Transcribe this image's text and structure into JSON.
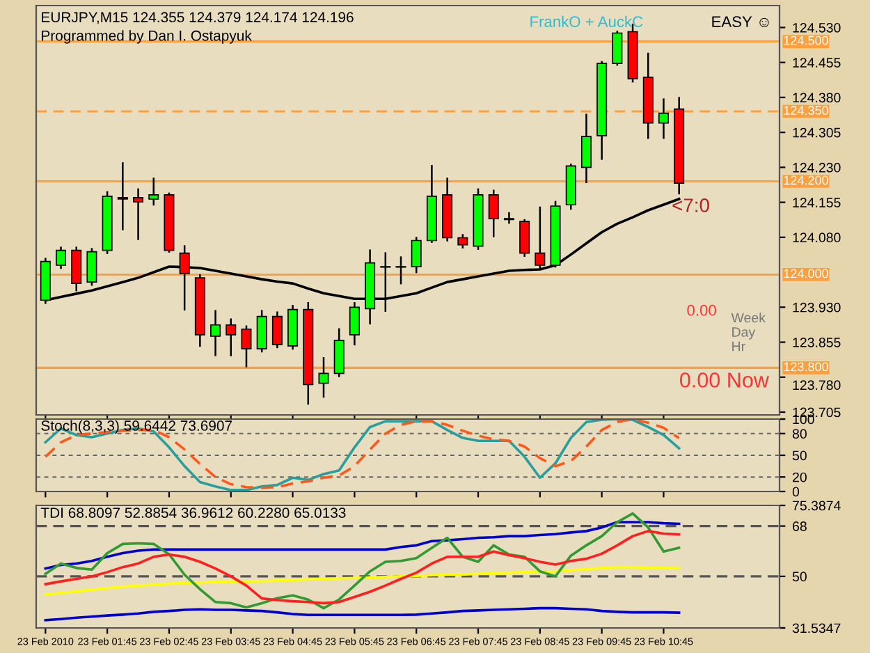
{
  "chart_data": [
    {
      "type": "candlestick",
      "title": "EURJPY,M15 124.355 124.379 124.174 124.196",
      "subtitle": "Programmed by Dan I. Ostapyuk",
      "categories": [
        null,
        null,
        null,
        null,
        null,
        null,
        null,
        null,
        null,
        null,
        null,
        null,
        null,
        null,
        null,
        null,
        null,
        null,
        null,
        null,
        null,
        null,
        null,
        null,
        null,
        null,
        null,
        null,
        null,
        null,
        null,
        null,
        null,
        null,
        null,
        null,
        null,
        null,
        null,
        null,
        null,
        null
      ],
      "ohlc": [
        [
          123.945,
          124.034,
          123.939,
          124.028
        ],
        [
          124.02,
          124.058,
          124.014,
          124.052
        ],
        [
          124.052,
          124.058,
          123.966,
          123.981
        ],
        [
          123.984,
          124.055,
          123.978,
          124.049
        ],
        [
          124.052,
          124.177,
          124.046,
          124.168
        ],
        [
          124.165,
          124.239,
          124.097,
          124.162
        ],
        [
          124.165,
          124.183,
          124.076,
          124.156
        ],
        [
          124.162,
          124.206,
          124.15,
          124.171
        ],
        [
          124.171,
          124.174,
          124.049,
          124.052
        ],
        [
          124.046,
          124.061,
          123.925,
          124.002
        ],
        [
          123.993,
          123.999,
          123.847,
          123.871
        ],
        [
          123.868,
          123.922,
          123.827,
          123.892
        ],
        [
          123.892,
          123.904,
          123.827,
          123.871
        ],
        [
          123.883,
          123.889,
          123.803,
          123.841
        ],
        [
          123.841,
          123.922,
          123.835,
          123.91
        ],
        [
          123.91,
          123.919,
          123.844,
          123.85
        ],
        [
          123.847,
          123.933,
          123.841,
          123.925
        ],
        [
          123.925,
          123.939,
          123.723,
          123.764
        ],
        [
          123.767,
          123.821,
          123.738,
          123.788
        ],
        [
          123.788,
          123.883,
          123.782,
          123.859
        ],
        [
          123.871,
          123.939,
          123.85,
          123.93
        ],
        [
          123.927,
          124.052,
          123.895,
          124.025
        ],
        [
          124.017,
          124.046,
          123.922,
          124.016
        ],
        [
          124.017,
          124.037,
          123.981,
          124.016
        ],
        [
          124.017,
          124.079,
          124.005,
          124.073
        ],
        [
          124.073,
          124.233,
          124.07,
          124.168
        ],
        [
          124.171,
          124.206,
          124.073,
          124.079
        ],
        [
          124.079,
          124.085,
          124.058,
          124.064
        ],
        [
          124.061,
          124.183,
          124.055,
          124.171
        ],
        [
          124.171,
          124.18,
          124.082,
          124.12
        ],
        [
          124.12,
          124.132,
          124.111,
          124.118
        ],
        [
          124.114,
          124.117,
          124.04,
          124.046
        ],
        [
          124.046,
          124.144,
          124.014,
          124.02
        ],
        [
          124.02,
          124.156,
          124.017,
          124.147
        ],
        [
          124.15,
          124.236,
          124.141,
          124.233
        ],
        [
          124.23,
          124.343,
          124.198,
          124.296
        ],
        [
          124.298,
          124.456,
          124.248,
          124.453
        ],
        [
          124.453,
          124.521,
          124.45,
          124.518
        ],
        [
          124.521,
          124.536,
          124.414,
          124.42
        ],
        [
          124.423,
          124.474,
          124.293,
          124.325
        ],
        [
          124.325,
          124.376,
          124.293,
          124.346
        ],
        [
          124.355,
          124.379,
          124.174,
          124.196
        ]
      ],
      "colors": [
        "#00ff00",
        "#00ff00",
        "#ff0000",
        "#00ff00",
        "#00ff00",
        "#ff0000",
        "#ff0000",
        "#00ff00",
        "#ff0000",
        "#ff0000",
        "#ff0000",
        "#00ff00",
        "#ff0000",
        "#ff0000",
        "#00ff00",
        "#ff0000",
        "#00ff00",
        "#ff0000",
        "#00ff00",
        "#00ff00",
        "#00ff00",
        "#00ff00",
        "#ff0000",
        "#ff0000",
        "#00ff00",
        "#00ff00",
        "#ff0000",
        "#ff0000",
        "#00ff00",
        "#ff0000",
        "#ff0000",
        "#ff0000",
        "#ff0000",
        "#00ff00",
        "#00ff00",
        "#00ff00",
        "#00ff00",
        "#00ff00",
        "#ff0000",
        "#ff0000",
        "#00ff00",
        "#ff0000"
      ],
      "series": [
        {
          "type": "line",
          "color": "#000000",
          "values": [
            123.945,
            123.952,
            123.959,
            123.966,
            123.975,
            123.984,
            123.993,
            124.005,
            124.017,
            124.016,
            124.014,
            124.008,
            124.002,
            123.996,
            123.99,
            123.985,
            123.981,
            123.97,
            123.96,
            123.954,
            123.948,
            123.948,
            123.948,
            123.954,
            123.96,
            123.972,
            123.984,
            123.99,
            123.996,
            124.002,
            124.008,
            124.01,
            124.011,
            124.02,
            124.043,
            124.067,
            124.091,
            124.109,
            124.123,
            124.138,
            124.15,
            124.162
          ]
        }
      ],
      "ylim": [
        123.699,
        124.577
      ],
      "yticks": [
        123.705,
        {
          "value": 123.78,
          "label": "123.780"
        },
        123.855,
        {
          "value": 123.93,
          "label": "123.930"
        },
        {
          "value": 124.08,
          "label": "124.080"
        },
        124.155,
        {
          "value": 124.23,
          "label": "124.230"
        },
        124.305,
        {
          "value": 124.38,
          "label": "124.380"
        },
        124.455,
        {
          "value": 124.53,
          "label": "124.530"
        }
      ],
      "ref_lines": [
        {
          "axis": "y",
          "value": 124.5,
          "label": "124.500",
          "color": "#ffa040",
          "line_style": "solid"
        },
        {
          "axis": "y",
          "value": 124.35,
          "label": "124.350",
          "color": "#ffa040",
          "line_style": "dashed"
        },
        {
          "axis": "y",
          "value": 124.2,
          "label": "124.200",
          "color": "#ffa040",
          "line_style": "solid"
        },
        {
          "axis": "y",
          "value": 124.0,
          "label": "124.000",
          "color": "#ffa040",
          "line_style": "solid"
        },
        {
          "axis": "y",
          "value": 123.8,
          "label": "123.800",
          "color": "#ffa040",
          "line_style": "solid"
        }
      ],
      "annotations": [
        "EASY ☺",
        "FrankO + AuckC",
        "<7:0",
        "0.00",
        "Week",
        "Day",
        "Hr",
        "0.00 Now"
      ],
      "tick_labels": "y"
    },
    {
      "type": "line",
      "title": "Stoch(8,3,3) 59.6442 73.6907",
      "categories": [
        null,
        null,
        null,
        null,
        null,
        null,
        null,
        null,
        null,
        null,
        null,
        null,
        null,
        null,
        null,
        null,
        null,
        null,
        null,
        null,
        null,
        null,
        null,
        null,
        null,
        null,
        null,
        null,
        null,
        null,
        null,
        null,
        null,
        null,
        null,
        null,
        null,
        null,
        null,
        null,
        null,
        null
      ],
      "series": [
        {
          "color": "#2a9d9d",
          "line_style": "solid",
          "values": [
            68,
            87,
            78,
            75,
            80,
            85,
            87,
            83,
            61,
            35,
            13,
            7,
            2,
            2,
            7,
            9,
            19,
            16,
            24,
            29,
            61,
            89,
            97,
            97,
            97,
            97,
            85,
            74,
            70,
            70,
            70,
            48,
            19,
            39,
            74,
            96,
            99,
            100,
            99,
            89,
            78,
            59.6
          ]
        },
        {
          "color": "#ff5a1e",
          "line_style": "dashed",
          "values": [
            48,
            68,
            78,
            80,
            82,
            84,
            85,
            85,
            75,
            58,
            38,
            20,
            10,
            6,
            5,
            6,
            11,
            14,
            19,
            22,
            35,
            58,
            80,
            92,
            97,
            97,
            92,
            84,
            77,
            72,
            70,
            62,
            46,
            35,
            42,
            62,
            85,
            96,
            100,
            95,
            88,
            73.7
          ]
        }
      ],
      "ylim": [
        0,
        100
      ],
      "yticks": [
        0,
        20,
        50,
        80,
        100
      ],
      "grid": "y",
      "tick_labels": "y"
    },
    {
      "type": "line",
      "title": "TDI 68.8097 52.8854 36.9612 60.2280 65.0133",
      "categories": [
        "23 Feb 2010",
        null,
        null,
        null,
        "23 Feb 01:45",
        null,
        null,
        null,
        "23 Feb 02:45",
        null,
        null,
        null,
        "23 Feb 03:45",
        null,
        null,
        null,
        "23 Feb 04:45",
        null,
        null,
        null,
        "23 Feb 05:45",
        null,
        null,
        null,
        "23 Feb 06:45",
        null,
        null,
        null,
        "23 Feb 07:45",
        null,
        null,
        null,
        "23 Feb 08:45",
        null,
        null,
        null,
        "23 Feb 09:45",
        null,
        null,
        null,
        "23 Feb 10:45",
        null
      ],
      "series": [
        {
          "color": "#0000cc",
          "line_style": "solid",
          "values": [
            52.8,
            54.1,
            54.6,
            55.5,
            57.0,
            58.3,
            59.2,
            59.6,
            59.6,
            59.6,
            59.6,
            59.6,
            59.6,
            59.6,
            59.6,
            59.6,
            59.6,
            59.6,
            59.6,
            59.6,
            59.6,
            59.6,
            59.6,
            60.5,
            61.1,
            62.6,
            62.9,
            63.3,
            63.8,
            64.0,
            64.4,
            64.4,
            64.8,
            65.1,
            65.7,
            66.2,
            67.5,
            69.4,
            69.4,
            69.4,
            69.0,
            68.8
          ]
        },
        {
          "color": "#ffff00",
          "line_style": "solid",
          "values": [
            43.5,
            44.1,
            44.6,
            45.2,
            45.8,
            46.3,
            46.7,
            47.0,
            47.4,
            47.6,
            47.8,
            48.0,
            48.2,
            48.2,
            48.3,
            48.5,
            48.7,
            48.9,
            49.1,
            49.3,
            49.4,
            49.6,
            49.8,
            50.0,
            50.2,
            50.4,
            50.6,
            50.7,
            50.9,
            51.1,
            51.3,
            51.5,
            51.7,
            51.8,
            52.2,
            52.6,
            53.0,
            53.3,
            53.3,
            53.1,
            53.0,
            52.9
          ]
        },
        {
          "color": "#0000cc",
          "line_style": "solid",
          "values": [
            34.3,
            34.7,
            35.2,
            35.6,
            36.0,
            36.3,
            36.7,
            37.3,
            37.6,
            38.0,
            38.2,
            38.0,
            38.0,
            37.8,
            37.6,
            37.1,
            36.5,
            36.2,
            36.2,
            36.2,
            36.2,
            36.2,
            36.2,
            36.2,
            36.3,
            36.7,
            37.1,
            37.6,
            37.8,
            38.0,
            38.2,
            38.4,
            38.6,
            38.6,
            38.4,
            38.2,
            37.6,
            37.3,
            37.1,
            37.1,
            37.1,
            37.0
          ]
        },
        {
          "color": "#339933",
          "line_style": "solid",
          "values": [
            50.9,
            54.6,
            53.0,
            52.4,
            58.3,
            61.6,
            61.8,
            61.6,
            57.9,
            50.6,
            45.4,
            40.8,
            40.4,
            38.9,
            40.4,
            42.2,
            43.2,
            41.7,
            38.6,
            41.7,
            46.7,
            51.8,
            55.2,
            55.5,
            56.5,
            60.2,
            63.8,
            57.0,
            55.2,
            61.1,
            57.8,
            57.0,
            51.8,
            50.0,
            57.4,
            61.1,
            64.4,
            69.4,
            72.5,
            67.5,
            58.9,
            60.2
          ]
        },
        {
          "color": "#ff2020",
          "line_style": "solid",
          "values": [
            47.2,
            48.2,
            49.1,
            50.0,
            51.5,
            53.3,
            54.6,
            57.0,
            57.8,
            57.0,
            55.2,
            52.8,
            50.0,
            46.7,
            42.1,
            41.5,
            41.1,
            40.8,
            40.4,
            40.8,
            42.6,
            44.5,
            46.7,
            49.1,
            51.3,
            54.6,
            57.0,
            57.0,
            57.0,
            58.9,
            57.6,
            56.5,
            55.2,
            54.2,
            55.5,
            56.3,
            58.1,
            61.1,
            64.4,
            66.2,
            65.3,
            65.0
          ]
        }
      ],
      "ylim": [
        31.5347,
        75.3874
      ],
      "yticks": [
        31.5347,
        50,
        68,
        75.3874
      ],
      "ref_lines": [
        {
          "axis": "y",
          "value": 68,
          "color": "#555555",
          "line_style": "dashed"
        },
        {
          "axis": "y",
          "value": 50,
          "color": "#555555",
          "line_style": "dashed"
        }
      ]
    }
  ]
}
